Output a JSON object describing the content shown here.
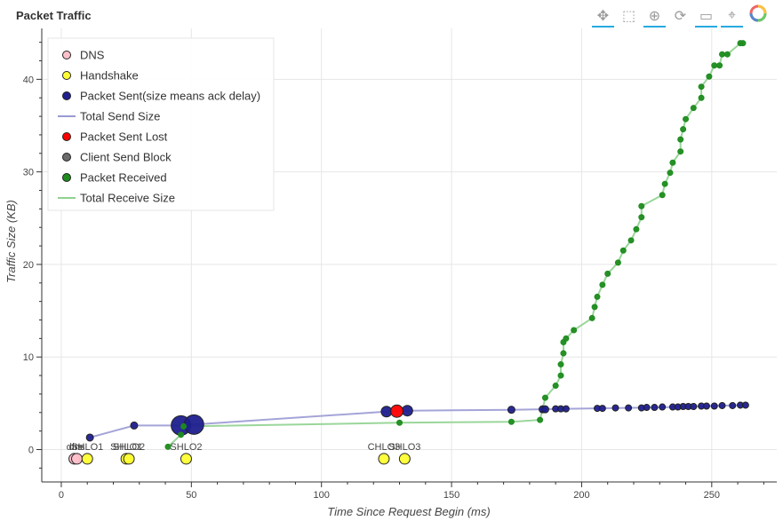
{
  "toolbar": {
    "tools": [
      {
        "name": "pan-tool",
        "icon": "move-icon",
        "glyph": "✥",
        "active": true
      },
      {
        "name": "box-zoom-tool",
        "icon": "box-zoom-icon",
        "glyph": "⬚",
        "active": false
      },
      {
        "name": "wheel-zoom-tool",
        "icon": "wheel-zoom-icon",
        "glyph": "⊕",
        "active": true
      },
      {
        "name": "reset-tool",
        "icon": "reset-icon",
        "glyph": "⟳",
        "active": false
      },
      {
        "name": "hover-tool",
        "icon": "hover-icon",
        "glyph": "▭",
        "active": true
      },
      {
        "name": "crosshair-tool",
        "icon": "crosshair-icon",
        "glyph": "⌖",
        "active": true
      },
      {
        "name": "bokeh-logo",
        "icon": "bokeh-logo-icon",
        "glyph": "",
        "active": false
      }
    ]
  },
  "chart_data": {
    "type": "scatter",
    "title": "Packet Traffic",
    "xlabel": "Time Since Request Begin (ms)",
    "ylabel": "Traffic Size (KB)",
    "xlim": [
      -7.5,
      275
    ],
    "ylim": [
      -3.5,
      45.5
    ],
    "xticks": [
      0,
      50,
      100,
      150,
      200,
      250
    ],
    "yticks": [
      0,
      10,
      20,
      30,
      40
    ],
    "grid": true,
    "legend_position": "top-left",
    "legend": [
      {
        "label": "DNS",
        "kind": "circle",
        "color": "#ffc0cb"
      },
      {
        "label": "Handshake",
        "kind": "circle",
        "color": "#ffff33"
      },
      {
        "label": "Packet Sent(size means ack delay)",
        "kind": "circle",
        "color": "#1f1f8f"
      },
      {
        "label": "Total Send Size",
        "kind": "line",
        "color": "#9a9ad4"
      },
      {
        "label": "Packet Sent Lost",
        "kind": "circle",
        "color": "#ff0000"
      },
      {
        "label": "Client Send Block",
        "kind": "circle",
        "color": "#6b6b6b"
      },
      {
        "label": "Packet Received",
        "kind": "circle",
        "color": "#1e8c1e"
      },
      {
        "label": "Total Receive Size",
        "kind": "line",
        "color": "#8fd18f"
      }
    ],
    "series": [
      {
        "name": "DNS",
        "color": "#ffc0cb",
        "points": [
          {
            "x": 5,
            "y": -1,
            "label": "dns"
          },
          {
            "x": 6,
            "y": -1,
            "label": "dns"
          }
        ]
      },
      {
        "name": "Handshake",
        "color": "#ffff33",
        "points": [
          {
            "x": 10,
            "y": -1,
            "label": "SHLO1"
          },
          {
            "x": 25,
            "y": -1,
            "label": "SHLO1"
          },
          {
            "x": 26,
            "y": -1,
            "label": "SHLO2"
          },
          {
            "x": 48,
            "y": -1,
            "label": "SHLO2"
          },
          {
            "x": 124,
            "y": -1,
            "label": "CHLO3"
          },
          {
            "x": 132,
            "y": -1,
            "label": "SHLO3"
          }
        ]
      },
      {
        "name": "Packet Sent(size means ack delay)",
        "color": "#1f1f8f",
        "points": [
          {
            "x": 11,
            "y": 1.3,
            "s": 4
          },
          {
            "x": 28,
            "y": 2.6,
            "s": 4
          },
          {
            "x": 46,
            "y": 2.6,
            "s": 11
          },
          {
            "x": 51,
            "y": 2.7,
            "s": 11
          },
          {
            "x": 125,
            "y": 4.1,
            "s": 6
          },
          {
            "x": 133,
            "y": 4.2,
            "s": 6
          },
          {
            "x": 173,
            "y": 4.3,
            "s": 4
          },
          {
            "x": 185,
            "y": 4.35,
            "s": 4
          },
          {
            "x": 186,
            "y": 4.35,
            "s": 4
          },
          {
            "x": 190,
            "y": 4.4,
            "s": 3.5
          },
          {
            "x": 192,
            "y": 4.4,
            "s": 3.5
          },
          {
            "x": 194,
            "y": 4.4,
            "s": 3.5
          },
          {
            "x": 206,
            "y": 4.45,
            "s": 3.5
          },
          {
            "x": 208,
            "y": 4.45,
            "s": 3.5
          },
          {
            "x": 213,
            "y": 4.5,
            "s": 3.5
          },
          {
            "x": 218,
            "y": 4.5,
            "s": 3.5
          },
          {
            "x": 223,
            "y": 4.5,
            "s": 3.5
          },
          {
            "x": 225,
            "y": 4.55,
            "s": 3.5
          },
          {
            "x": 228,
            "y": 4.55,
            "s": 3.5
          },
          {
            "x": 231,
            "y": 4.6,
            "s": 3.5
          },
          {
            "x": 235,
            "y": 4.6,
            "s": 3.5
          },
          {
            "x": 237,
            "y": 4.6,
            "s": 3.5
          },
          {
            "x": 239,
            "y": 4.65,
            "s": 3.5
          },
          {
            "x": 241,
            "y": 4.65,
            "s": 3.5
          },
          {
            "x": 243,
            "y": 4.65,
            "s": 3.5
          },
          {
            "x": 246,
            "y": 4.7,
            "s": 3.5
          },
          {
            "x": 248,
            "y": 4.7,
            "s": 3.5
          },
          {
            "x": 251,
            "y": 4.7,
            "s": 3.5
          },
          {
            "x": 254,
            "y": 4.75,
            "s": 3.5
          },
          {
            "x": 258,
            "y": 4.75,
            "s": 3.5
          },
          {
            "x": 261,
            "y": 4.8,
            "s": 3.5
          },
          {
            "x": 263,
            "y": 4.8,
            "s": 3.5
          }
        ]
      },
      {
        "name": "Total Send Size",
        "color": "#9a9ad4",
        "points": [
          {
            "x": 11,
            "y": 1.3
          },
          {
            "x": 28,
            "y": 2.6
          },
          {
            "x": 46,
            "y": 2.6
          },
          {
            "x": 51,
            "y": 2.7
          },
          {
            "x": 125,
            "y": 4.1
          },
          {
            "x": 133,
            "y": 4.2
          },
          {
            "x": 173,
            "y": 4.3
          },
          {
            "x": 194,
            "y": 4.4
          },
          {
            "x": 230,
            "y": 4.55
          },
          {
            "x": 263,
            "y": 4.8
          }
        ]
      },
      {
        "name": "Packet Sent Lost",
        "color": "#ff0000",
        "points": [
          {
            "x": 129,
            "y": 4.15,
            "s": 7
          }
        ]
      },
      {
        "name": "Client Send Block",
        "color": "#6b6b6b",
        "points": []
      },
      {
        "name": "Packet Received",
        "color": "#1e8c1e",
        "points": [
          {
            "x": 41,
            "y": 0.3
          },
          {
            "x": 46,
            "y": 1.6
          },
          {
            "x": 47,
            "y": 2.5
          },
          {
            "x": 130,
            "y": 2.9
          },
          {
            "x": 173,
            "y": 3.0
          },
          {
            "x": 184,
            "y": 3.2
          },
          {
            "x": 186,
            "y": 5.6
          },
          {
            "x": 190,
            "y": 6.9
          },
          {
            "x": 192,
            "y": 8.0
          },
          {
            "x": 192,
            "y": 9.2
          },
          {
            "x": 193,
            "y": 10.4
          },
          {
            "x": 193,
            "y": 11.6
          },
          {
            "x": 194,
            "y": 12.0
          },
          {
            "x": 197,
            "y": 12.9
          },
          {
            "x": 204,
            "y": 14.2
          },
          {
            "x": 205,
            "y": 15.4
          },
          {
            "x": 206,
            "y": 16.5
          },
          {
            "x": 208,
            "y": 17.8
          },
          {
            "x": 210,
            "y": 19.0
          },
          {
            "x": 214,
            "y": 20.2
          },
          {
            "x": 216,
            "y": 21.5
          },
          {
            "x": 219,
            "y": 22.6
          },
          {
            "x": 221,
            "y": 23.8
          },
          {
            "x": 223,
            "y": 25.1
          },
          {
            "x": 223,
            "y": 26.3
          },
          {
            "x": 231,
            "y": 27.5
          },
          {
            "x": 232,
            "y": 28.7
          },
          {
            "x": 234,
            "y": 29.9
          },
          {
            "x": 235,
            "y": 31.0
          },
          {
            "x": 238,
            "y": 32.2
          },
          {
            "x": 238,
            "y": 33.5
          },
          {
            "x": 239,
            "y": 34.6
          },
          {
            "x": 240,
            "y": 35.7
          },
          {
            "x": 243,
            "y": 36.9
          },
          {
            "x": 246,
            "y": 38.0
          },
          {
            "x": 246,
            "y": 39.2
          },
          {
            "x": 249,
            "y": 40.3
          },
          {
            "x": 251,
            "y": 41.5
          },
          {
            "x": 253,
            "y": 41.5
          },
          {
            "x": 254,
            "y": 42.7
          },
          {
            "x": 256,
            "y": 42.7
          },
          {
            "x": 261,
            "y": 43.9
          },
          {
            "x": 262,
            "y": 43.9
          }
        ]
      },
      {
        "name": "Total Receive Size",
        "color": "#8fd18f",
        "points": [
          {
            "x": 41,
            "y": 0.3
          },
          {
            "x": 46,
            "y": 1.6
          },
          {
            "x": 47,
            "y": 2.5
          },
          {
            "x": 130,
            "y": 2.9
          },
          {
            "x": 173,
            "y": 3.0
          },
          {
            "x": 184,
            "y": 3.2
          },
          {
            "x": 186,
            "y": 5.6
          },
          {
            "x": 190,
            "y": 6.9
          },
          {
            "x": 192,
            "y": 8.0
          },
          {
            "x": 192,
            "y": 9.2
          },
          {
            "x": 193,
            "y": 10.4
          },
          {
            "x": 193,
            "y": 11.6
          },
          {
            "x": 194,
            "y": 12.0
          },
          {
            "x": 197,
            "y": 12.9
          },
          {
            "x": 204,
            "y": 14.2
          },
          {
            "x": 205,
            "y": 15.4
          },
          {
            "x": 206,
            "y": 16.5
          },
          {
            "x": 208,
            "y": 17.8
          },
          {
            "x": 210,
            "y": 19.0
          },
          {
            "x": 214,
            "y": 20.2
          },
          {
            "x": 216,
            "y": 21.5
          },
          {
            "x": 219,
            "y": 22.6
          },
          {
            "x": 221,
            "y": 23.8
          },
          {
            "x": 223,
            "y": 25.1
          },
          {
            "x": 223,
            "y": 26.3
          },
          {
            "x": 231,
            "y": 27.5
          },
          {
            "x": 232,
            "y": 28.7
          },
          {
            "x": 234,
            "y": 29.9
          },
          {
            "x": 235,
            "y": 31.0
          },
          {
            "x": 238,
            "y": 32.2
          },
          {
            "x": 238,
            "y": 33.5
          },
          {
            "x": 239,
            "y": 34.6
          },
          {
            "x": 240,
            "y": 35.7
          },
          {
            "x": 243,
            "y": 36.9
          },
          {
            "x": 246,
            "y": 38.0
          },
          {
            "x": 246,
            "y": 39.2
          },
          {
            "x": 249,
            "y": 40.3
          },
          {
            "x": 251,
            "y": 41.5
          },
          {
            "x": 253,
            "y": 41.5
          },
          {
            "x": 254,
            "y": 42.7
          },
          {
            "x": 256,
            "y": 42.7
          },
          {
            "x": 261,
            "y": 43.9
          },
          {
            "x": 262,
            "y": 43.9
          }
        ]
      }
    ]
  }
}
